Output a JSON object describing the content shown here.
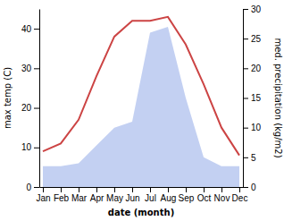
{
  "chart_data": {
    "type": "line",
    "categories": [
      "Jan",
      "Feb",
      "Mar",
      "Apr",
      "May",
      "Jun",
      "Jul",
      "Aug",
      "Sep",
      "Oct",
      "Nov",
      "Dec"
    ],
    "xlabel": "date (month)",
    "ylabel": "max temp (C)",
    "y2label": "med. precipitation (kg/m2)",
    "ylim": [
      0,
      45
    ],
    "yticks": [
      0,
      10,
      20,
      30,
      40
    ],
    "y2lim": [
      0,
      30
    ],
    "y2ticks": [
      0,
      5,
      10,
      15,
      20,
      25,
      30
    ],
    "series": [
      {
        "type": "area",
        "color": "#b8c8f0",
        "axis": "y2",
        "values": [
          3.5,
          3.5,
          4,
          7,
          10,
          11,
          26,
          27,
          15,
          5,
          3.5,
          3.5
        ]
      },
      {
        "type": "line",
        "color": "#cc4444",
        "values": [
          9,
          11,
          17,
          28,
          38,
          42,
          42,
          43,
          36,
          26,
          15,
          8
        ]
      }
    ]
  }
}
